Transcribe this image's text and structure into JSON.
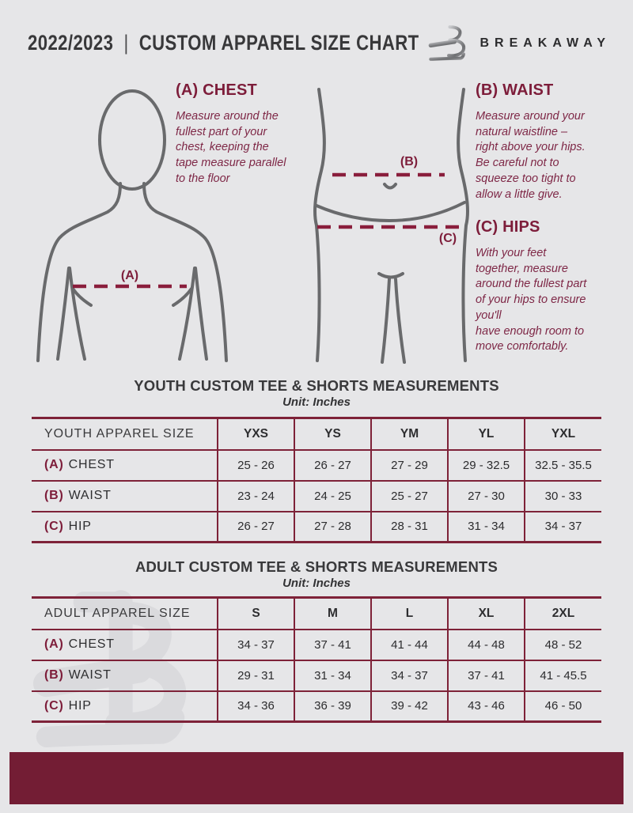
{
  "header": {
    "season": "2022/2023",
    "separator": "|",
    "title": "CUSTOM APPAREL SIZE CHART",
    "brand": "BREAKAWAY"
  },
  "guide": {
    "chest": {
      "heading": "(A) CHEST",
      "marker": "(A)",
      "description": "Measure around the\nfullest part of your\nchest, keeping the\ntape measure parallel\nto the floor"
    },
    "waist": {
      "heading": "(B) WAIST",
      "marker": "(B)",
      "description": "Measure around your\nnatural waistline –\nright above your hips.\nBe careful not to\nsqueeze too tight to\nallow a little give."
    },
    "hips": {
      "heading": "(C) HIPS",
      "marker": "(C)",
      "description": "With your feet\ntogether, measure\naround the fullest part\nof your hips to ensure\nyou'll\nhave enough room to\nmove comfortably."
    }
  },
  "youth": {
    "title": "YOUTH CUSTOM TEE & SHORTS MEASUREMENTS",
    "unit": "Unit: Inches",
    "header": [
      "YOUTH APPAREL SIZE",
      "YXS",
      "YS",
      "YM",
      "YL",
      "YXL"
    ],
    "rows": [
      {
        "prefix": "(A)",
        "label": "CHEST",
        "values": [
          "25 - 26",
          "26 - 27",
          "27 - 29",
          "29 - 32.5",
          "32.5 - 35.5"
        ]
      },
      {
        "prefix": "(B)",
        "label": "WAIST",
        "values": [
          "23 - 24",
          "24 - 25",
          "25 - 27",
          "27 - 30",
          "30 - 33"
        ]
      },
      {
        "prefix": "(C)",
        "label": "HIP",
        "values": [
          "26 - 27",
          "27 - 28",
          "28 - 31",
          "31 - 34",
          "34 - 37"
        ]
      }
    ]
  },
  "adult": {
    "title": "ADULT CUSTOM TEE & SHORTS MEASUREMENTS",
    "unit": "Unit: Inches",
    "header": [
      "ADULT APPAREL SIZE",
      "S",
      "M",
      "L",
      "XL",
      "2XL"
    ],
    "rows": [
      {
        "prefix": "(A)",
        "label": "CHEST",
        "values": [
          "34 - 37",
          "37 - 41",
          "41 - 44",
          "44 - 48",
          "48 - 52"
        ]
      },
      {
        "prefix": "(B)",
        "label": "WAIST",
        "values": [
          "29 - 31",
          "31 - 34",
          "34 - 37",
          "37 - 41",
          "41 - 45.5"
        ]
      },
      {
        "prefix": "(C)",
        "label": "HIP",
        "values": [
          "34 - 36",
          "36 - 39",
          "39 - 42",
          "43 - 46",
          "46 - 50"
        ]
      }
    ]
  },
  "colors": {
    "maroon_accent": "#7d1d3a",
    "table_border": "#7e2238",
    "paragraph_maroon": "#7e2746",
    "footer_bar": "#731d34",
    "dark_text": "#38383a",
    "background": "#e6e6e8",
    "figure_stroke": "#696a6c"
  }
}
